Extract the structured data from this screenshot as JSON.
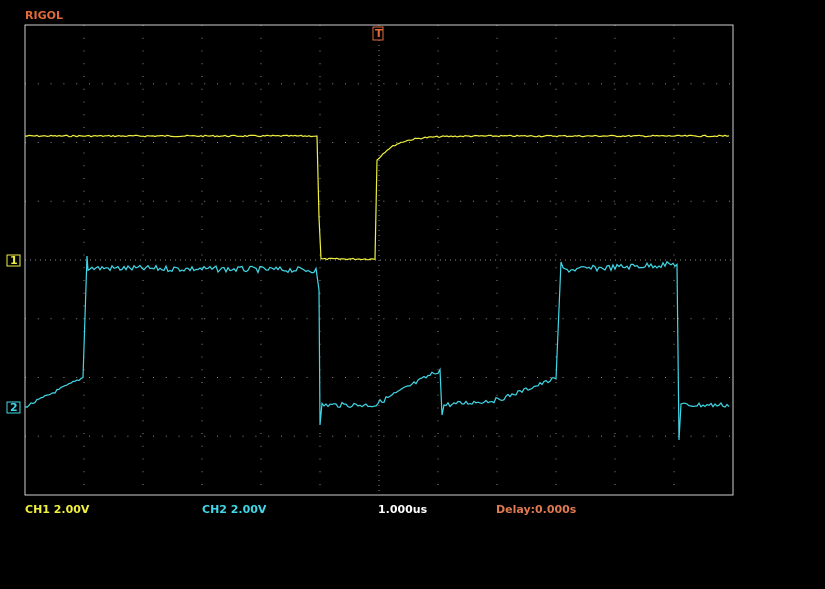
{
  "brand": "RIGOL",
  "channel_markers": [
    "1",
    "2"
  ],
  "trigger_marker": "T",
  "status": {
    "ch1": "CH1 2.00V",
    "ch2": "CH2 2.00V",
    "timebase": "1.000us",
    "delay": "Delay:0.000s"
  }
}
